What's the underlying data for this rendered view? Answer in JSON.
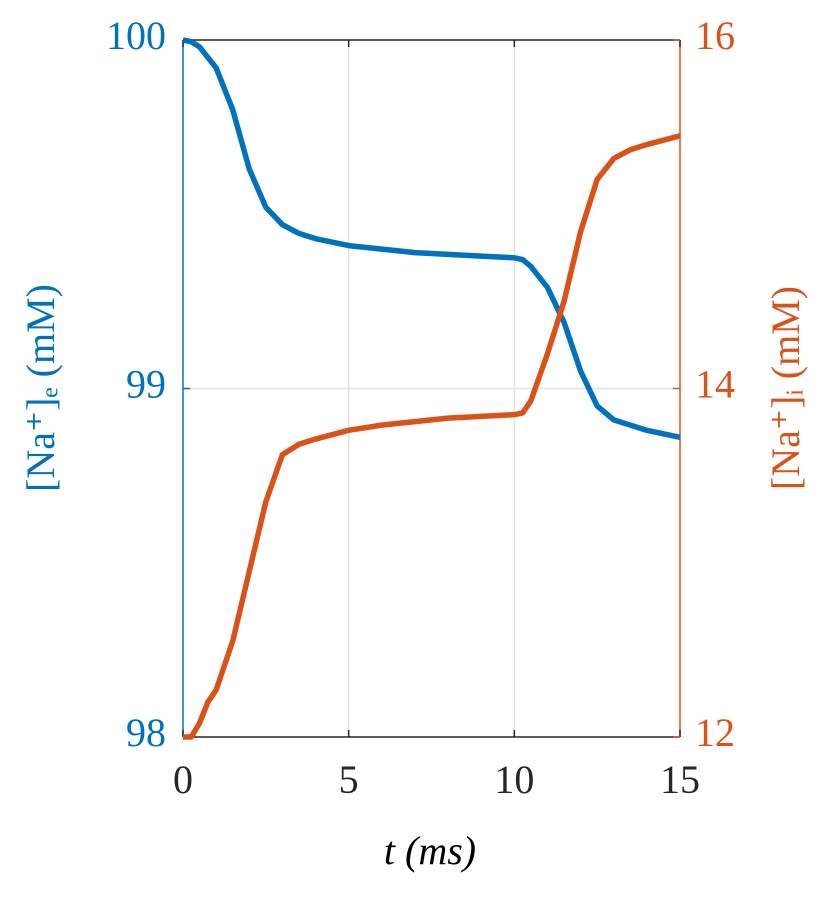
{
  "chart_data": {
    "type": "line",
    "xlabel": "t (ms)",
    "ylabel": "[Na⁺]ₑ (mM)",
    "y2label": "[Na⁺]ᵢ (mM)",
    "x": [
      0,
      0.25,
      0.5,
      0.75,
      1,
      1.5,
      2,
      2.5,
      3,
      3.5,
      4,
      5,
      6,
      7,
      8,
      9,
      10,
      10.25,
      10.5,
      11,
      11.5,
      12,
      12.5,
      13,
      13.5,
      14,
      15
    ],
    "series": [
      {
        "color": "#0072bd",
        "values": [
          100,
          99.995,
          99.98,
          99.95,
          99.92,
          99.8,
          99.63,
          99.52,
          99.47,
          99.445,
          99.43,
          99.41,
          99.4,
          99.39,
          99.385,
          99.38,
          99.375,
          99.37,
          99.35,
          99.29,
          99.19,
          99.05,
          98.95,
          98.91,
          98.895,
          98.88,
          98.86
        ]
      },
      {
        "color": "#d95319",
        "axis": "y2",
        "values": [
          12,
          12.0,
          12.08,
          12.2,
          12.27,
          12.55,
          12.95,
          13.35,
          13.62,
          13.68,
          13.71,
          13.76,
          13.79,
          13.81,
          13.83,
          13.84,
          13.85,
          13.86,
          13.93,
          14.2,
          14.5,
          14.9,
          15.2,
          15.32,
          15.37,
          15.4,
          15.45
        ]
      }
    ],
    "xlim": [
      0,
      15
    ],
    "xticks": [
      0,
      5,
      10,
      15
    ],
    "ylim": [
      98,
      100
    ],
    "yticks": [
      98,
      99,
      100
    ],
    "y2lim": [
      12,
      16
    ],
    "y2ticks": [
      12,
      14,
      16
    ],
    "grid": true
  }
}
